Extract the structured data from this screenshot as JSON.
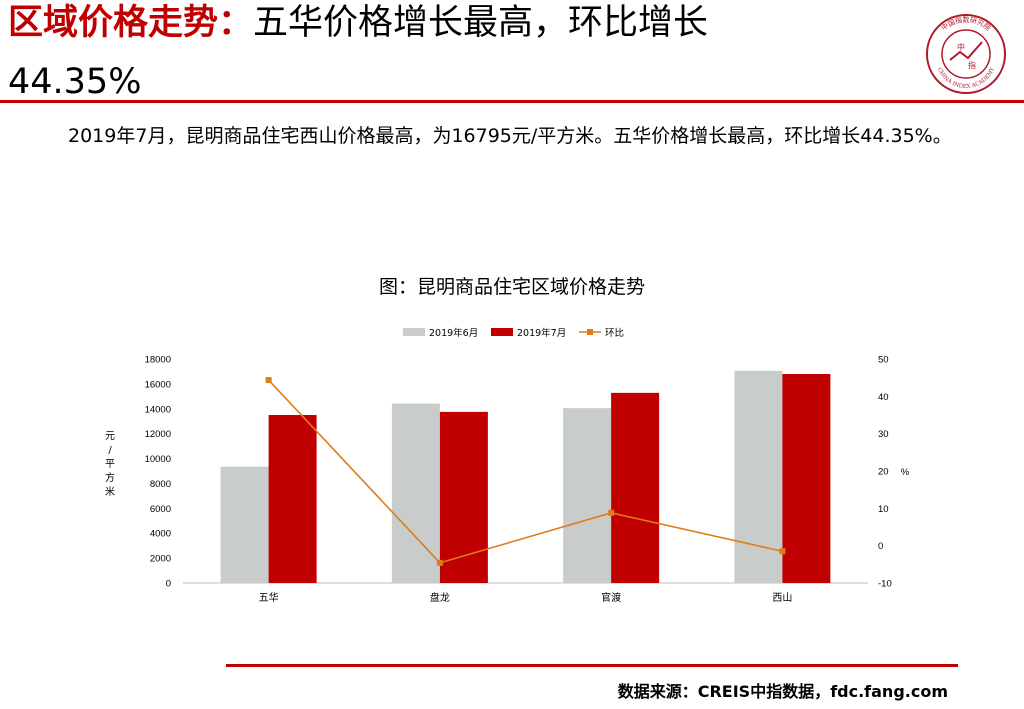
{
  "header": {
    "title_part1": "区域价格走势：",
    "title_part2": "五华价格增长最高，环比增长",
    "title_part3": "44.35%",
    "logo_text_top": "中国指数研究院",
    "logo_text_bottom": "CHINA INDEX ACADEMY",
    "logo_center": "中",
    "logo_center2": "指"
  },
  "summary": "2019年7月，昆明商品住宅西山价格最高，为16795元/平方米。五华价格增长最高，环比增长44.35%。",
  "chart_title": "图：昆明商品住宅区域价格走势",
  "chart_data": {
    "type": "bar",
    "categories": [
      "五华",
      "盘龙",
      "官渡",
      "西山"
    ],
    "series": [
      {
        "name": "2019年6月",
        "type": "bar",
        "axis": "left",
        "color": "#c8cdcc",
        "values": [
          9350,
          14420,
          14050,
          17050
        ]
      },
      {
        "name": "2019年7月",
        "type": "bar",
        "axis": "left",
        "color": "#c00000",
        "values": [
          13500,
          13750,
          15280,
          16795
        ]
      },
      {
        "name": "环比",
        "type": "line",
        "axis": "right",
        "color": "#e07b1a",
        "values": [
          44.35,
          -4.6,
          8.8,
          -1.5
        ]
      }
    ],
    "ylabel_left": "元/平方米",
    "ylabel_right": "%",
    "ylim_left": [
      0,
      18000
    ],
    "yticks_left": [
      "0",
      "2000",
      "4000",
      "6000",
      "8000",
      "10000",
      "12000",
      "14000",
      "16000",
      "18000"
    ],
    "ylim_right": [
      -10,
      50
    ],
    "yticks_right": [
      "-10",
      "0",
      "10",
      "20",
      "30",
      "40",
      "50"
    ],
    "legend_position": "top-center",
    "grid": false
  },
  "footer": {
    "source": "数据来源：CREIS中指数据，fdc.fang.com"
  }
}
